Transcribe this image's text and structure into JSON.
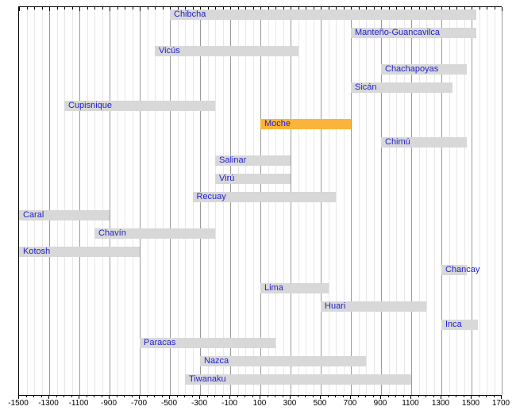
{
  "chart_data": {
    "type": "bar",
    "variant": "horizontal-timeline-gantt",
    "title": "",
    "xlabel": "",
    "ylabel": "",
    "legend": "none",
    "grid": "on",
    "highlighted_series": "Moche",
    "x_axis": {
      "min": -1500,
      "max": 1700,
      "major_step": 200,
      "minor_step": 50,
      "tick_labels": [
        "-1500",
        "-1300",
        "-1100",
        "-900",
        "-700",
        "-500",
        "-300",
        "-100",
        "100",
        "300",
        "500",
        "700",
        "900",
        "1100",
        "1300",
        "1500",
        "1700"
      ]
    },
    "series": [
      {
        "name": "Chibcha",
        "from": -500,
        "till": 1530,
        "highlighted": false
      },
      {
        "name": "Manteño-Guancavilca",
        "from": 700,
        "till": 1530,
        "highlighted": false
      },
      {
        "name": "Vicús",
        "from": -600,
        "till": 350,
        "highlighted": false
      },
      {
        "name": "Chachapoyas",
        "from": 900,
        "till": 1470,
        "highlighted": false
      },
      {
        "name": "Sicán",
        "from": 700,
        "till": 1375,
        "highlighted": false
      },
      {
        "name": "Cupisnique",
        "from": -1200,
        "till": -200,
        "highlighted": false
      },
      {
        "name": "Moche",
        "from": 100,
        "till": 700,
        "highlighted": true
      },
      {
        "name": "Chimú",
        "from": 900,
        "till": 1470,
        "highlighted": false
      },
      {
        "name": "Salinar",
        "from": -200,
        "till": 300,
        "highlighted": false
      },
      {
        "name": "Virú",
        "from": -200,
        "till": 300,
        "highlighted": false
      },
      {
        "name": "Recuay",
        "from": -350,
        "till": 600,
        "highlighted": false
      },
      {
        "name": "Caral",
        "from": -1500,
        "till": -900,
        "highlighted": false
      },
      {
        "name": "Chavín",
        "from": -1000,
        "till": -200,
        "highlighted": false
      },
      {
        "name": "Kotosh",
        "from": -1500,
        "till": -700,
        "highlighted": false
      },
      {
        "name": "Chancay",
        "from": 1300,
        "till": 1470,
        "highlighted": false
      },
      {
        "name": "Lima",
        "from": 100,
        "till": 550,
        "highlighted": false
      },
      {
        "name": "Huari",
        "from": 500,
        "till": 1200,
        "highlighted": false
      },
      {
        "name": "Inca",
        "from": 1300,
        "till": 1540,
        "highlighted": false
      },
      {
        "name": "Paracas",
        "from": -700,
        "till": 200,
        "highlighted": false
      },
      {
        "name": "Nazca",
        "from": -300,
        "till": 800,
        "highlighted": false
      },
      {
        "name": "Tiwanaku",
        "from": -400,
        "till": 1100,
        "highlighted": false
      }
    ],
    "colors": {
      "background": "#ffffff",
      "bar": "#d8d8d8",
      "highlight_bar": "#fbb43a",
      "bar_label_text": "#2222cc",
      "axis_label_text": "#000000",
      "minor_gridline": "#e7e7e7",
      "major_gridline": "#9a9a9a",
      "frame": "#000000"
    }
  }
}
